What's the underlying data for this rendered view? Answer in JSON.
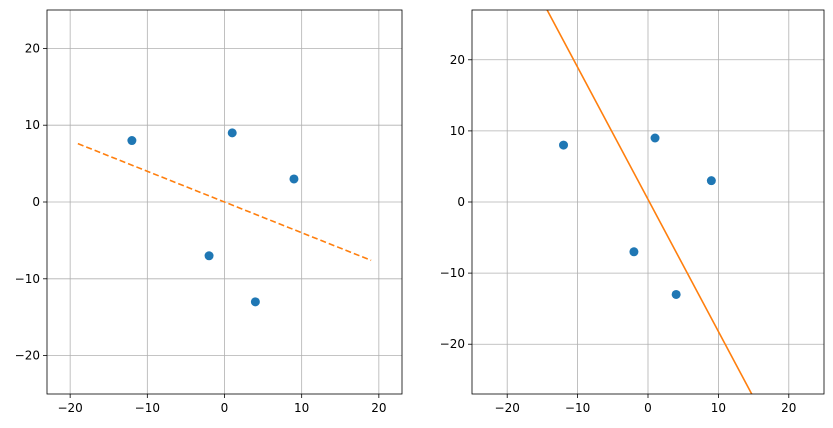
{
  "chart_data": [
    {
      "type": "scatter",
      "title": "",
      "xlabel": "",
      "ylabel": "",
      "xlim": [
        -23,
        23
      ],
      "ylim": [
        -25,
        25
      ],
      "xticks": [
        -20,
        -10,
        0,
        10,
        20
      ],
      "yticks": [
        -20,
        -10,
        0,
        10,
        20
      ],
      "grid": true,
      "points": [
        {
          "x": -12,
          "y": 8
        },
        {
          "x": 1,
          "y": 9
        },
        {
          "x": 9,
          "y": 3
        },
        {
          "x": -2,
          "y": -7
        },
        {
          "x": 4,
          "y": -13
        }
      ],
      "point_color": "#1f77b4",
      "line": {
        "x": [
          -19,
          19
        ],
        "y": [
          7.6,
          -7.6
        ],
        "style": "dashed",
        "color": "#ff7f0e"
      }
    },
    {
      "type": "scatter",
      "title": "",
      "xlabel": "",
      "ylabel": "",
      "xlim": [
        -25,
        25
      ],
      "ylim": [
        -27,
        27
      ],
      "xticks": [
        -20,
        -10,
        0,
        10,
        20
      ],
      "yticks": [
        -20,
        -10,
        0,
        10,
        20
      ],
      "grid": true,
      "points": [
        {
          "x": -12,
          "y": 8
        },
        {
          "x": 1,
          "y": 9
        },
        {
          "x": 9,
          "y": 3
        },
        {
          "x": -2,
          "y": -7
        },
        {
          "x": 4,
          "y": -13
        }
      ],
      "point_color": "#1f77b4",
      "line": {
        "x": [
          -14.6,
          15
        ],
        "y": [
          27.5,
          -27.5
        ],
        "style": "solid",
        "color": "#ff7f0e"
      }
    }
  ]
}
